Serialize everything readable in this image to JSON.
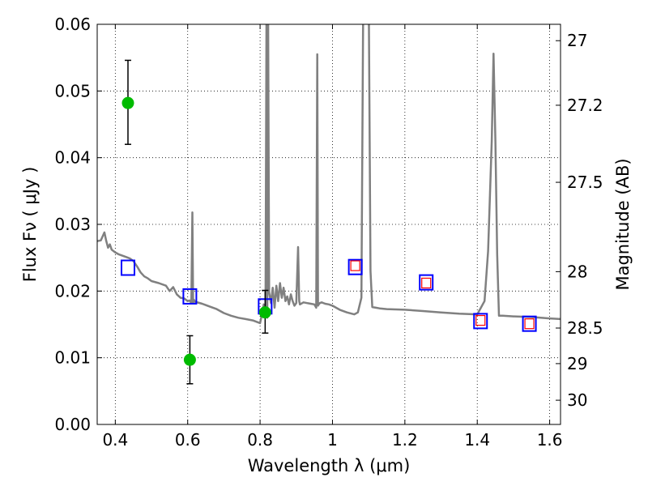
{
  "chart_data": {
    "type": "line",
    "xlabel": "Wavelength  λ (μm)",
    "ylabel": "Flux  Fν  ( μJy )",
    "y2label": "Magnitude (AB)",
    "xlim": [
      0.35,
      1.63
    ],
    "ylim": [
      0.0,
      0.06
    ],
    "grid": true,
    "xticks": [
      0.4,
      0.6,
      0.8,
      1.0,
      1.2,
      1.4,
      1.6
    ],
    "xtick_labels": [
      "0.4",
      "0.6",
      "0.8",
      "1",
      "1.2",
      "1.4",
      "1.6"
    ],
    "yticks": [
      0.0,
      0.01,
      0.02,
      0.03,
      0.04,
      0.05,
      0.06
    ],
    "ytick_labels": [
      "0.00",
      "0.01",
      "0.02",
      "0.03",
      "0.04",
      "0.05",
      "0.06"
    ],
    "y2ticks": [
      {
        "label": "27",
        "mag": 27.0
      },
      {
        "label": "27.2",
        "mag": 27.2
      },
      {
        "label": "27.5",
        "mag": 27.5
      },
      {
        "label": "28",
        "mag": 28.0
      },
      {
        "label": "28.5",
        "mag": 28.5
      },
      {
        "label": "29",
        "mag": 29.0
      },
      {
        "label": "30",
        "mag": 30.0
      }
    ],
    "series": [
      {
        "kind": "sed_model",
        "color": "#808080",
        "x": [
          0.35,
          0.36,
          0.37,
          0.375,
          0.38,
          0.385,
          0.39,
          0.4,
          0.41,
          0.42,
          0.43,
          0.44,
          0.45,
          0.46,
          0.47,
          0.48,
          0.49,
          0.5,
          0.52,
          0.54,
          0.55,
          0.56,
          0.57,
          0.58,
          0.59,
          0.6,
          0.605,
          0.61,
          0.613,
          0.615,
          0.617,
          0.62,
          0.64,
          0.66,
          0.68,
          0.7,
          0.72,
          0.74,
          0.76,
          0.78,
          0.8,
          0.805,
          0.81,
          0.815,
          0.818,
          0.82,
          0.822,
          0.825,
          0.83,
          0.835,
          0.84,
          0.845,
          0.85,
          0.855,
          0.86,
          0.865,
          0.87,
          0.875,
          0.88,
          0.885,
          0.89,
          0.895,
          0.9,
          0.905,
          0.908,
          0.91,
          0.92,
          0.93,
          0.94,
          0.95,
          0.955,
          0.958,
          0.96,
          0.962,
          0.965,
          0.97,
          0.98,
          0.99,
          1.0,
          1.02,
          1.04,
          1.06,
          1.07,
          1.08,
          1.085,
          1.09,
          1.1,
          1.105,
          1.11,
          1.12,
          1.13,
          1.15,
          1.2,
          1.25,
          1.3,
          1.35,
          1.4,
          1.42,
          1.43,
          1.44,
          1.445,
          1.45,
          1.455,
          1.46,
          1.47,
          1.5,
          1.55,
          1.6,
          1.63
        ],
        "y": [
          0.0275,
          0.0276,
          0.0288,
          0.0275,
          0.0265,
          0.027,
          0.0262,
          0.0258,
          0.0255,
          0.0253,
          0.0251,
          0.0249,
          0.0245,
          0.0237,
          0.0228,
          0.0222,
          0.0219,
          0.0215,
          0.0212,
          0.0208,
          0.02,
          0.0206,
          0.0195,
          0.019,
          0.0189,
          0.0185,
          0.0186,
          0.0182,
          0.0318,
          0.0182,
          0.0187,
          0.0184,
          0.0181,
          0.0177,
          0.0173,
          0.0167,
          0.0163,
          0.016,
          0.0158,
          0.0156,
          0.0152,
          0.0165,
          0.018,
          0.0168,
          0.065,
          0.016,
          0.065,
          0.0198,
          0.0182,
          0.0205,
          0.0175,
          0.0208,
          0.0185,
          0.0212,
          0.019,
          0.0205,
          0.0185,
          0.0192,
          0.018,
          0.0195,
          0.0185,
          0.0178,
          0.0182,
          0.0266,
          0.0185,
          0.018,
          0.0183,
          0.0182,
          0.0181,
          0.018,
          0.0175,
          0.0555,
          0.0178,
          0.018,
          0.0182,
          0.0183,
          0.0181,
          0.018,
          0.0178,
          0.0172,
          0.0168,
          0.0165,
          0.0168,
          0.019,
          0.065,
          0.065,
          0.065,
          0.023,
          0.0176,
          0.0175,
          0.0174,
          0.0173,
          0.0172,
          0.017,
          0.0168,
          0.0166,
          0.0165,
          0.0185,
          0.026,
          0.0425,
          0.0556,
          0.0425,
          0.0255,
          0.0163,
          0.0163,
          0.0162,
          0.0161,
          0.0159,
          0.0158
        ]
      },
      {
        "kind": "model_photometry",
        "marker": "square",
        "edge_color": "#0000ff",
        "x": [
          0.435,
          0.606,
          0.814,
          1.063,
          1.259,
          1.409,
          1.544
        ],
        "y": [
          0.0235,
          0.0192,
          0.0177,
          0.0236,
          0.0213,
          0.0155,
          0.0151
        ]
      },
      {
        "kind": "upper_limits",
        "marker": "square",
        "edge_color": "#ff0000",
        "x": [
          1.063,
          1.259,
          1.409,
          1.544
        ],
        "y": [
          0.0238,
          0.0212,
          0.0156,
          0.0151
        ]
      },
      {
        "kind": "observed",
        "marker": "circle",
        "color": "#00bb00",
        "x": [
          0.435,
          0.606,
          0.814
        ],
        "y": [
          0.0482,
          0.0097,
          0.0168
        ],
        "yerr_low": [
          0.0062,
          0.0036,
          0.0031
        ],
        "yerr_high": [
          0.0064,
          0.0036,
          0.0033
        ]
      }
    ]
  }
}
